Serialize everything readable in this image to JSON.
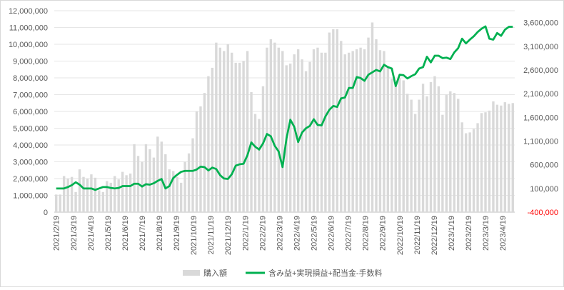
{
  "chart_data": {
    "type": "bar",
    "title": "",
    "xlabel": "",
    "x_tick_labels": [
      "2021/2/19",
      "2021/3/19",
      "2021/4/19",
      "2021/5/19",
      "2021/6/19",
      "2021/7/19",
      "2021/8/19",
      "2021/9/19",
      "2021/10/19",
      "2021/11/19",
      "2021/12/19",
      "2022/1/19",
      "2022/2/19",
      "2022/3/19",
      "2022/4/19",
      "2022/5/19",
      "2022/6/19",
      "2022/7/19",
      "2022/8/19",
      "2022/9/19",
      "2022/10/19",
      "2022/11/19",
      "2022/12/19",
      "2023/1/19",
      "2023/2/19",
      "2023/3/19",
      "2023/4/19"
    ],
    "y_left": {
      "ylim": [
        0,
        12000000
      ],
      "ticks": [
        0,
        1000000,
        2000000,
        3000000,
        4000000,
        5000000,
        6000000,
        7000000,
        8000000,
        9000000,
        10000000,
        11000000,
        12000000
      ],
      "tick_labels": [
        "0",
        "1,000,000",
        "2,000,000",
        "3,000,000",
        "4,000,000",
        "5,000,000",
        "6,000,000",
        "7,000,000",
        "8,000,000",
        "9,000,000",
        "10,000,000",
        "11,000,000",
        "12,000,000"
      ]
    },
    "y_right": {
      "ylim": [
        -400000,
        3850000
      ],
      "ticks": [
        -400000,
        100000,
        600000,
        1100000,
        1600000,
        2100000,
        2600000,
        3100000,
        3600000
      ],
      "tick_labels": [
        "-400,000",
        "100,000",
        "600,000",
        "1,100,000",
        "1,600,000",
        "2,100,000",
        "2,600,000",
        "3,100,000",
        "3,600,000"
      ],
      "negative_label_color": "#ff0000"
    },
    "grid": true,
    "legend_position": "bottom",
    "series": [
      {
        "name": "購入額",
        "type": "bar",
        "axis": "left",
        "color": "#d9d9d9",
        "values": [
          1050000,
          1050000,
          2150000,
          2000000,
          2100000,
          1200000,
          2550000,
          2100000,
          2000000,
          2250000,
          2050000,
          1300000,
          1200000,
          1850000,
          1750000,
          2150000,
          1950000,
          2400000,
          2200000,
          2300000,
          4050000,
          3350000,
          3000000,
          4050000,
          3750000,
          3250000,
          4500000,
          4200000,
          3450000,
          2550000,
          2450000,
          2100000,
          1750000,
          3000000,
          3500000,
          4400000,
          6000000,
          6300000,
          7100000,
          8100000,
          8600000,
          10100000,
          9800000,
          9600000,
          10000000,
          9500000,
          8900000,
          8900000,
          9000000,
          9600000,
          7150000,
          5850000,
          5550000,
          7500000,
          9800000,
          10300000,
          10100000,
          9800000,
          9600000,
          8750000,
          8850000,
          9400000,
          9700000,
          9100000,
          8400000,
          8950000,
          9700000,
          9800000,
          9500000,
          9500000,
          10700000,
          10900000,
          10900000,
          10200000,
          9400000,
          9500000,
          9600000,
          9700000,
          9800000,
          9700000,
          10400000,
          11300000,
          10300000,
          9650000,
          9600000,
          8700000,
          7950000,
          7650000,
          8000000,
          7850000,
          7050000,
          6700000,
          5850000,
          6700000,
          7650000,
          6900000,
          7750000,
          8100000,
          7500000,
          5800000,
          7000000,
          7200000,
          7100000,
          6750000,
          5350000,
          4700000,
          4750000,
          4950000,
          5300000,
          5900000,
          5950000,
          6050000,
          6600000,
          6400000,
          6350000,
          6550000,
          6450000,
          6500000
        ]
      },
      {
        "name": "含み益+実現損益+配当金-手数料",
        "type": "line",
        "axis": "right",
        "color": "#00b050",
        "values": [
          100000,
          100000,
          100000,
          130000,
          170000,
          230000,
          180000,
          100000,
          100000,
          100000,
          70000,
          100000,
          130000,
          130000,
          110000,
          100000,
          110000,
          150000,
          150000,
          150000,
          200000,
          200000,
          140000,
          190000,
          180000,
          210000,
          260000,
          300000,
          100000,
          150000,
          320000,
          390000,
          450000,
          470000,
          470000,
          470000,
          500000,
          560000,
          550000,
          480000,
          540000,
          510000,
          380000,
          310000,
          300000,
          400000,
          580000,
          610000,
          620000,
          800000,
          1070000,
          980000,
          920000,
          1050000,
          1250000,
          1200000,
          1000000,
          880000,
          550000,
          1150000,
          1550000,
          1400000,
          1080000,
          1280000,
          1370000,
          1420000,
          1560000,
          1440000,
          1430000,
          1620000,
          1760000,
          1840000,
          1820000,
          2000000,
          2020000,
          2220000,
          2220000,
          2450000,
          2430000,
          2370000,
          2500000,
          2550000,
          2600000,
          2570000,
          2710000,
          2660000,
          2630000,
          2260000,
          2500000,
          2490000,
          2420000,
          2470000,
          2510000,
          2630000,
          2660000,
          2880000,
          2760000,
          2900000,
          2900000,
          2850000,
          2860000,
          2830000,
          2970000,
          3060000,
          3260000,
          3160000,
          3240000,
          3310000,
          3400000,
          3470000,
          3520000,
          3260000,
          3240000,
          3380000,
          3320000,
          3450000,
          3510000,
          3510000
        ]
      }
    ]
  }
}
